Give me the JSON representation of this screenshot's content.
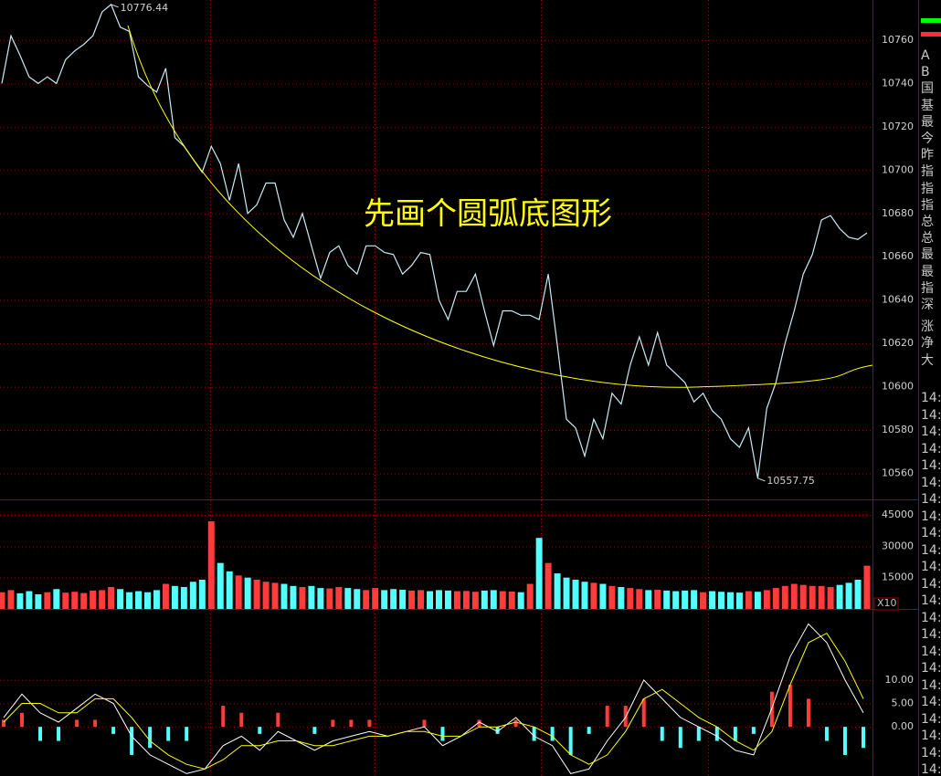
{
  "chart_data": [
    {
      "type": "line",
      "annotation": "先画个圆弧底图形",
      "color": "#c8ecf4",
      "grid": true,
      "values": [
        10740,
        10762,
        10753,
        10743,
        10740,
        10743,
        10740,
        10751,
        10755,
        10758,
        10762,
        10773,
        10776.44,
        10766,
        10764,
        10743,
        10739,
        10736,
        10747,
        10715,
        10711,
        10705,
        10699,
        10711,
        10703,
        10686,
        10703,
        10680,
        10684,
        10694,
        10694,
        10677,
        10669,
        10680,
        10665,
        10650,
        10662,
        10665,
        10656,
        10652,
        10665,
        10665,
        10662,
        10661,
        10652,
        10656,
        10662,
        10661,
        10640,
        10631,
        10644,
        10644,
        10652,
        10635,
        10619,
        10635,
        10635,
        10633,
        10633,
        10631,
        10652,
        10619,
        10585,
        10581,
        10568,
        10585,
        10576,
        10597,
        10592,
        10610,
        10623,
        10610,
        10625,
        10610,
        10606,
        10602,
        10593,
        10597,
        10589,
        10585,
        10576,
        10572,
        10581,
        10557.75,
        10590,
        10602,
        10620,
        10635,
        10652,
        10661,
        10677,
        10679,
        10673,
        10669,
        10668,
        10671
      ],
      "high": 10776.44,
      "low": 10557.75,
      "ylim": [
        10548,
        10778.5
      ],
      "yticks": [
        10560,
        10580,
        10600,
        10620,
        10640,
        10660,
        10680,
        10700,
        10720,
        10740,
        10760
      ]
    },
    {
      "type": "bar",
      "scale_label": "X10",
      "up_color": "#ff3c3c",
      "down_color": "#54ffff",
      "grid": true,
      "values": [
        8000,
        9000,
        7500,
        8500,
        7000,
        8000,
        9500,
        7800,
        8200,
        7600,
        8800,
        9000,
        10500,
        9500,
        8000,
        8500,
        8000,
        9000,
        12000,
        11000,
        10500,
        13000,
        14000,
        41900,
        22000,
        18000,
        16000,
        15000,
        14000,
        13000,
        12500,
        12000,
        11000,
        10500,
        11000,
        10000,
        9800,
        10500,
        10000,
        9500,
        9000,
        10000,
        9000,
        9500,
        9200,
        8800,
        9000,
        8500,
        9000,
        8800,
        8500,
        8600,
        8200,
        8800,
        9000,
        8500,
        8300,
        8000,
        12000,
        34000,
        22000,
        17000,
        15000,
        14000,
        13000,
        12500,
        12000,
        11000,
        10500,
        10000,
        9500,
        9000,
        9200,
        8800,
        8500,
        8800,
        9000,
        8000,
        8500,
        8200,
        8000,
        7800,
        8500,
        8200,
        9000,
        10000,
        11000,
        12000,
        11500,
        11000,
        11000,
        10500,
        11500,
        12500,
        14000,
        20700
      ],
      "ylim": [
        0,
        52000
      ],
      "yticks": [
        15000,
        30000,
        45000
      ]
    },
    {
      "type": "macd",
      "up_color": "#ff3c3c",
      "down_color": "#54ffff",
      "grid": true,
      "histogram": [
        1.5,
        3,
        -3,
        -3,
        1.5,
        1.5,
        -1.5,
        -6,
        -4.5,
        -3,
        -3,
        0,
        4.5,
        3,
        -1.5,
        3,
        0,
        -1.5,
        1.5,
        1.5,
        1.5,
        0,
        0,
        1.5,
        -3,
        0,
        1.5,
        -1.5,
        1.5,
        -3,
        -3,
        -6,
        -1.5,
        4.5,
        4.5,
        6,
        -3,
        -4.5,
        -3,
        -3,
        -3,
        -1.5,
        7.5,
        9,
        6,
        -3,
        -6,
        -4.5
      ],
      "lines": [
        {
          "color": "#ffffff",
          "values": [
            2,
            7,
            3,
            1,
            4,
            7,
            5,
            -2,
            -6,
            -8,
            -10,
            -9,
            -4,
            -2,
            -5,
            -1,
            -3,
            -5,
            -3,
            -2,
            -1,
            -2,
            -1,
            0,
            -4,
            -2,
            1,
            -1,
            2,
            -2,
            -4,
            -10,
            -9,
            -3,
            2,
            10,
            6,
            2,
            0,
            -2,
            -5,
            -6,
            4,
            15,
            22,
            18,
            10,
            3
          ]
        },
        {
          "color": "#ffff00",
          "values": [
            1,
            5,
            5,
            3,
            3,
            6,
            6,
            2,
            -3,
            -6,
            -8,
            -9,
            -7,
            -4,
            -4,
            -3,
            -3,
            -4,
            -4,
            -3,
            -2,
            -2,
            -1,
            -1,
            -2,
            -2,
            0,
            0,
            1,
            0,
            -2,
            -6,
            -8,
            -6,
            -1,
            6,
            8,
            5,
            2,
            0,
            -3,
            -5,
            -1,
            9,
            18,
            20,
            14,
            6
          ]
        }
      ],
      "ylim": [
        -10.5,
        25
      ],
      "yticks": [
        {
          "value": 0,
          "label": "0.00"
        },
        {
          "value": 5,
          "label": "5.00"
        },
        {
          "value": 10,
          "label": "10.00"
        }
      ]
    }
  ],
  "side_panel": {
    "labels": [
      "A",
      "B",
      "国",
      "基",
      "最",
      "今",
      "昨",
      "指",
      "指",
      "指",
      "总",
      "总",
      "最",
      "最",
      "指",
      "深",
      "涨",
      "净",
      "大"
    ],
    "times": [
      "14:",
      "14:",
      "14:",
      "14:",
      "14:",
      "14:",
      "14:",
      "14:",
      "14:",
      "14:",
      "14:",
      "14:",
      "14:",
      "14:",
      "14:",
      "14:",
      "14:",
      "14:",
      "14:",
      "14:",
      "14:",
      "14:",
      "14:"
    ]
  }
}
